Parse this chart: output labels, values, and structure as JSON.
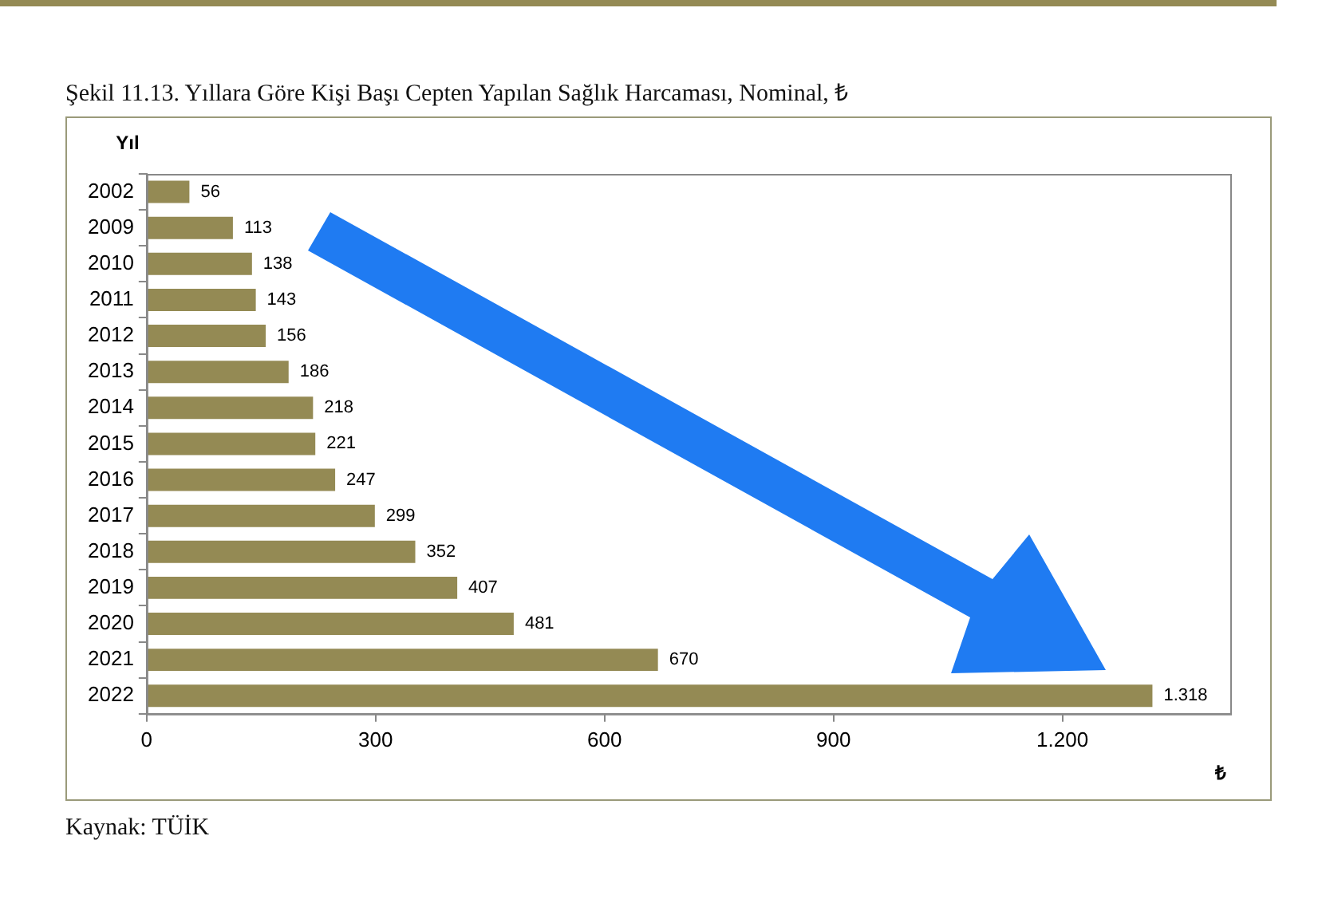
{
  "chart_data": {
    "type": "bar",
    "orientation": "horizontal",
    "title": "Şekil 11.13. Yıllara Göre Kişi Başı Cepten Yapılan Sağlık Harcaması, Nominal, ₺",
    "ylabel": "Yıl",
    "xlabel": "₺",
    "categories": [
      "2002",
      "2009",
      "2010",
      "2011",
      "2012",
      "2013",
      "2014",
      "2015",
      "2016",
      "2017",
      "2018",
      "2019",
      "2020",
      "2021",
      "2022"
    ],
    "values": [
      56,
      113,
      138,
      143,
      156,
      186,
      218,
      221,
      247,
      299,
      352,
      407,
      481,
      670,
      1318
    ],
    "value_labels": [
      "56",
      "113",
      "138",
      "143",
      "156",
      "186",
      "218",
      "221",
      "247",
      "299",
      "352",
      "407",
      "481",
      "670",
      "1.318"
    ],
    "color": "#948a54",
    "xlim": [
      0,
      1420
    ],
    "xticks": [
      0,
      300,
      600,
      900,
      {
        "value": 1200,
        "label": "1.200"
      }
    ],
    "grid": false,
    "legend": false,
    "annotations": [
      "Kaynak: TÜİK"
    ]
  }
}
